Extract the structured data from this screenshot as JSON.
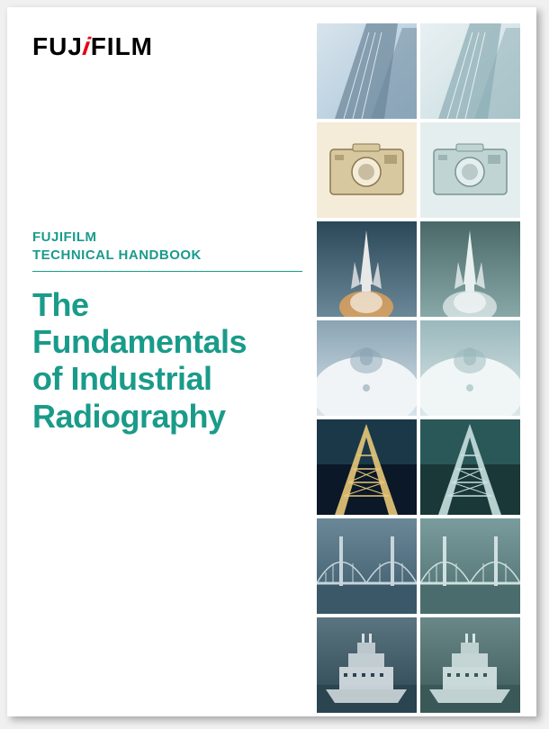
{
  "logo": {
    "part1": "FUJ",
    "red_i": "i",
    "part2": "FILM"
  },
  "subtitle": {
    "line1": "FUJIFILM",
    "line2": "TECHNICAL HANDBOOK"
  },
  "title": {
    "line1": "The Fundamentals",
    "line2": "of Industrial",
    "line3": "Radiography"
  },
  "colors": {
    "brand_green": "#1a9b8a",
    "brand_red": "#e30613",
    "bg": "#ffffff"
  },
  "tiles": [
    {
      "name": "building-color",
      "type": "building",
      "tint": "color",
      "bg1": "#a8c4d8",
      "bg2": "#d8e4ec",
      "fg": "#6a8598"
    },
    {
      "name": "building-mono",
      "type": "building",
      "tint": "mono",
      "bg1": "#c8dce0",
      "bg2": "#e8f0f2",
      "fg": "#8aacb4"
    },
    {
      "name": "camera-color",
      "type": "camera",
      "tint": "color",
      "bg1": "#d8c8a0",
      "bg2": "#f4ecd8",
      "fg": "#8a7850"
    },
    {
      "name": "camera-mono",
      "type": "camera",
      "tint": "mono",
      "bg1": "#c0d4d4",
      "bg2": "#e4eeee",
      "fg": "#7a9494"
    },
    {
      "name": "shuttle-color",
      "type": "shuttle",
      "tint": "color",
      "bg1": "#2a4858",
      "bg2": "#6a8898",
      "fg": "#e8e8e8"
    },
    {
      "name": "shuttle-mono",
      "type": "shuttle",
      "tint": "mono",
      "bg1": "#4a6868",
      "bg2": "#88a8a8",
      "fg": "#e8f0f0"
    },
    {
      "name": "aircraft-color",
      "type": "aircraft",
      "tint": "color",
      "bg1": "#8aa4b4",
      "bg2": "#d8e4ea",
      "fg": "#f0f4f6"
    },
    {
      "name": "aircraft-mono",
      "type": "aircraft",
      "tint": "mono",
      "bg1": "#9ab8bc",
      "bg2": "#dce8ea",
      "fg": "#f0f6f6"
    },
    {
      "name": "tower-color",
      "type": "tower",
      "tint": "color",
      "bg1": "#0a1828",
      "bg2": "#1a3848",
      "fg": "#e8c878"
    },
    {
      "name": "tower-mono",
      "type": "tower",
      "tint": "mono",
      "bg1": "#1a3838",
      "bg2": "#2a5858",
      "fg": "#c8e0e0"
    },
    {
      "name": "bridge-color",
      "type": "bridge",
      "tint": "color",
      "bg1": "#3a5868",
      "bg2": "#6a8898",
      "fg": "#c8d4dc"
    },
    {
      "name": "bridge-mono",
      "type": "bridge",
      "tint": "mono",
      "bg1": "#4a6c6c",
      "bg2": "#7a9c9c",
      "fg": "#d0e0e0"
    },
    {
      "name": "ship-color",
      "type": "ship",
      "tint": "color",
      "bg1": "#2a4450",
      "bg2": "#5a7480",
      "fg": "#d8e0e4"
    },
    {
      "name": "ship-mono",
      "type": "ship",
      "tint": "mono",
      "bg1": "#3a5858",
      "bg2": "#6a8888",
      "fg": "#d8e6e6"
    }
  ]
}
